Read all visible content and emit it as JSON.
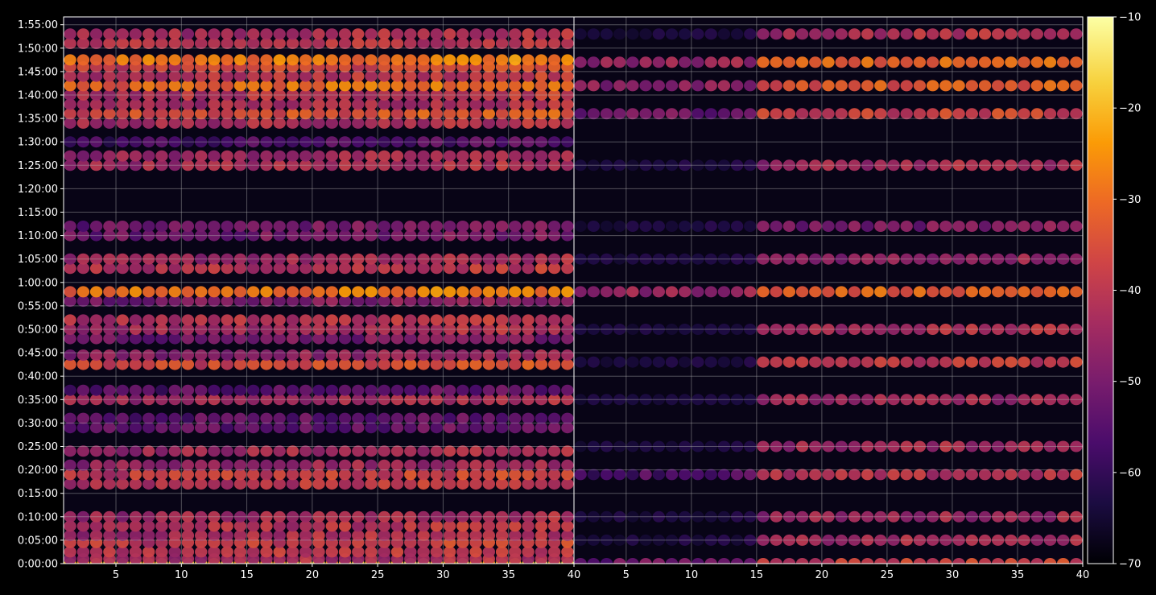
{
  "chart_data": [
    {
      "type": "heatmap",
      "panel": "left",
      "title": "",
      "xlabel": "",
      "ylabel": "",
      "x_range": [
        1,
        40
      ],
      "x_ticks": [
        5,
        10,
        15,
        20,
        25,
        30,
        35,
        40
      ],
      "x_tick_labels": [
        "5",
        "10",
        "15",
        "20",
        "25",
        "30",
        "35",
        "40"
      ],
      "y_ticks": [
        "0:00:00",
        "0:05:00",
        "0:10:00",
        "0:15:00",
        "0:20:00",
        "0:25:00",
        "0:30:00",
        "0:35:00",
        "0:40:00",
        "0:45:00",
        "0:50:00",
        "0:55:00",
        "1:00:00",
        "1:05:00",
        "1:10:00",
        "1:15:00",
        "1:20:00",
        "1:25:00",
        "1:30:00",
        "1:35:00",
        "1:40:00",
        "1:45:00",
        "1:50:00",
        "1:55:00"
      ],
      "grid": true,
      "colormap": "inferno",
      "bands": [
        {
          "t": "0:00:00",
          "level": -22
        },
        {
          "t": "0:01:00",
          "level": -45
        },
        {
          "t": "0:02:30",
          "level": -42
        },
        {
          "t": "0:04:30",
          "level": -40
        },
        {
          "t": "0:06:00",
          "level": -44
        },
        {
          "t": "0:08:00",
          "level": -43
        },
        {
          "t": "0:10:00",
          "level": -45
        },
        {
          "t": "0:17:00",
          "level": -42
        },
        {
          "t": "0:19:00",
          "level": -40
        },
        {
          "t": "0:21:00",
          "level": -46
        },
        {
          "t": "0:24:00",
          "level": -45
        },
        {
          "t": "0:29:00",
          "level": -55
        },
        {
          "t": "0:31:00",
          "level": -55
        },
        {
          "t": "0:35:00",
          "level": -45
        },
        {
          "t": "0:37:00",
          "level": -56
        },
        {
          "t": "0:42:30",
          "level": -38
        },
        {
          "t": "0:44:30",
          "level": -48
        },
        {
          "t": "0:48:00",
          "level": -52
        },
        {
          "t": "0:50:00",
          "level": -44
        },
        {
          "t": "0:52:00",
          "level": -42
        },
        {
          "t": "0:56:00",
          "level": -50
        },
        {
          "t": "0:58:00",
          "level": -30
        },
        {
          "t": "1:03:00",
          "level": -42
        },
        {
          "t": "1:05:00",
          "level": -46
        },
        {
          "t": "1:10:00",
          "level": -52
        },
        {
          "t": "1:12:00",
          "level": -52
        },
        {
          "t": "1:25:00",
          "level": -44
        },
        {
          "t": "1:27:00",
          "level": -46
        },
        {
          "t": "1:30:00",
          "level": -58
        },
        {
          "t": "1:34:00",
          "level": -44
        },
        {
          "t": "1:36:00",
          "level": -36
        },
        {
          "t": "1:38:00",
          "level": -44
        },
        {
          "t": "1:40:00",
          "level": -42
        },
        {
          "t": "1:42:00",
          "level": -32
        },
        {
          "t": "1:44:00",
          "level": -42
        },
        {
          "t": "1:46:00",
          "level": -38
        },
        {
          "t": "1:47:30",
          "level": -30
        },
        {
          "t": "1:51:00",
          "level": -42
        },
        {
          "t": "1:53:00",
          "level": -44
        }
      ]
    },
    {
      "type": "heatmap",
      "panel": "right",
      "title": "",
      "xlabel": "",
      "ylabel": "",
      "x_range": [
        1,
        40
      ],
      "x_ticks": [
        5,
        10,
        15,
        20,
        25,
        30,
        35,
        40
      ],
      "x_tick_labels": [
        "5",
        "10",
        "15",
        "20",
        "25",
        "30",
        "35",
        "40"
      ],
      "grid": true,
      "colormap": "inferno",
      "note_values": "same time bands as left panel, attenuated for x below about 15 except bands at 0:00:00, 0:20:00, 0:59:00 and 1:36:00-1:47:00",
      "bands": [
        {
          "t": "0:00:00",
          "level": -40
        },
        {
          "t": "0:05:00",
          "level": -46
        },
        {
          "t": "0:10:00",
          "level": -47
        },
        {
          "t": "0:19:00",
          "level": -44
        },
        {
          "t": "0:25:00",
          "level": -46
        },
        {
          "t": "0:35:00",
          "level": -47
        },
        {
          "t": "0:43:00",
          "level": -42
        },
        {
          "t": "0:50:00",
          "level": -45
        },
        {
          "t": "0:58:00",
          "level": -34
        },
        {
          "t": "1:05:00",
          "level": -48
        },
        {
          "t": "1:12:00",
          "level": -52
        },
        {
          "t": "1:25:00",
          "level": -46
        },
        {
          "t": "1:36:00",
          "level": -40
        },
        {
          "t": "1:42:00",
          "level": -36
        },
        {
          "t": "1:47:00",
          "level": -34
        },
        {
          "t": "1:53:00",
          "level": -44
        }
      ]
    }
  ],
  "colorbar": {
    "min": -70,
    "max": -10,
    "ticks": [
      -10,
      -20,
      -30,
      -40,
      -50,
      -60,
      -70
    ],
    "tick_labels": [
      "−10",
      "−20",
      "−30",
      "−40",
      "−50",
      "−60",
      "−70"
    ],
    "colors": [
      "#000004",
      "#1b0c41",
      "#4a0c6b",
      "#781c6d",
      "#a52c60",
      "#cf4446",
      "#ed6925",
      "#fb9b06",
      "#f7d13d",
      "#fcffa4"
    ]
  }
}
